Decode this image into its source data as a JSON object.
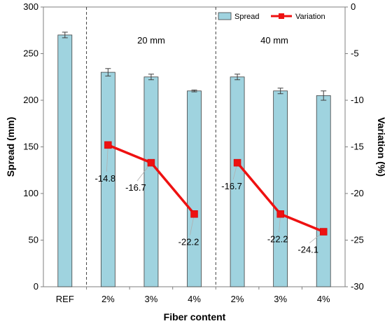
{
  "chart_data": {
    "type": "bar",
    "categories": [
      "REF",
      "2%",
      "3%",
      "4%",
      "2%",
      "3%",
      "4%"
    ],
    "xlabel": "Fiber content",
    "ylabel": "Spread (mm)",
    "ylabel_right": "Variation (%)",
    "ylim": [
      0,
      300
    ],
    "ylim_right": [
      -30,
      0
    ],
    "yticks": [
      0,
      50,
      100,
      150,
      200,
      250,
      300
    ],
    "yticks_right": [
      0,
      -5,
      -10,
      -15,
      -20,
      -25,
      -30
    ],
    "grid": false,
    "legend_position": "top-right",
    "series": [
      {
        "name": "Spread",
        "type": "bar",
        "axis": "left",
        "color": "#9fd3df",
        "values": [
          270,
          230,
          225,
          210,
          225,
          210,
          205
        ],
        "errors": [
          3,
          4,
          3,
          1,
          3,
          3,
          5
        ]
      },
      {
        "name": "Variation",
        "type": "line",
        "axis": "right",
        "color": "#ee1111",
        "points": [
          [
            1,
            -14.8
          ],
          [
            2,
            -16.7
          ],
          [
            3,
            -22.2
          ],
          [
            4,
            -16.7
          ],
          [
            5,
            -22.2
          ],
          [
            6,
            -24.1
          ]
        ],
        "segments": [
          [
            1,
            2,
            3
          ],
          [
            4,
            5,
            6
          ]
        ],
        "labels": [
          "-14.8",
          "-16.7",
          "-22.2",
          "-16.7",
          "-22.2",
          "-24.1"
        ]
      }
    ],
    "annotations": [
      "20 mm",
      "40 mm"
    ],
    "group_separators": true
  }
}
